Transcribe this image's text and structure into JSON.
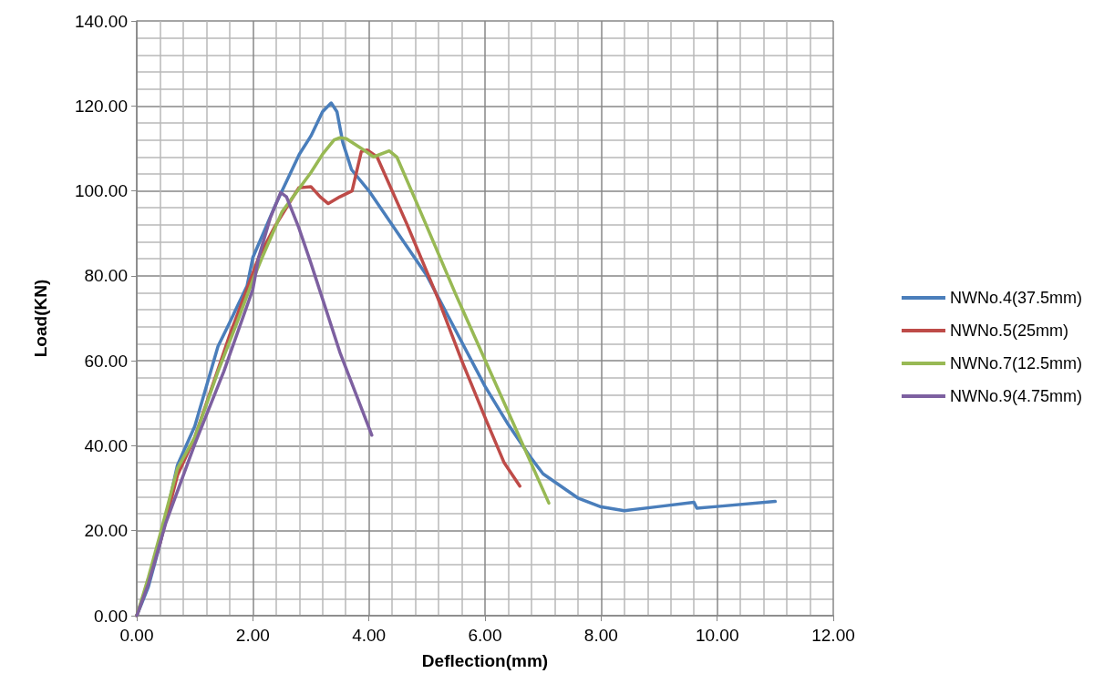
{
  "chart_data": {
    "type": "line",
    "xlabel": "Deflection(mm)",
    "ylabel": "Load(KN)",
    "xlim": [
      0,
      12
    ],
    "ylim": [
      0,
      140
    ],
    "xticks": [
      {
        "value": 0,
        "label": "0.00"
      },
      {
        "value": 2,
        "label": "2.00"
      },
      {
        "value": 4,
        "label": "4.00"
      },
      {
        "value": 6,
        "label": "6.00"
      },
      {
        "value": 8,
        "label": "8.00"
      },
      {
        "value": 10,
        "label": "10.00"
      },
      {
        "value": 12,
        "label": "12.00"
      }
    ],
    "yticks": [
      {
        "value": 0,
        "label": "0.00"
      },
      {
        "value": 20,
        "label": "20.00"
      },
      {
        "value": 40,
        "label": "40.00"
      },
      {
        "value": 60,
        "label": "60.00"
      },
      {
        "value": 80,
        "label": "80.00"
      },
      {
        "value": 100,
        "label": "100.00"
      },
      {
        "value": 120,
        "label": "120.00"
      },
      {
        "value": 140,
        "label": "140.00"
      }
    ],
    "grid": true,
    "legend": "right",
    "marker": "none",
    "line_style": "solid",
    "series": [
      {
        "name": "NWNo.4(37.5mm)",
        "color": "#4a7ebb",
        "x": [
          0,
          0.2,
          0.4,
          0.7,
          1.0,
          1.4,
          1.6,
          1.9,
          2.0,
          2.4,
          2.8,
          3.0,
          3.2,
          3.35,
          3.45,
          3.55,
          3.7,
          4.0,
          4.5,
          5.0,
          5.5,
          6.0,
          6.4,
          6.8,
          7.0,
          7.6,
          8.0,
          8.4,
          9.0,
          9.6,
          9.65,
          10.0,
          11.0
        ],
        "values": [
          0,
          6.8,
          16.8,
          35.4,
          44.6,
          63.4,
          69,
          77.6,
          84.3,
          97,
          108.6,
          112.9,
          118.6,
          120.7,
          118.6,
          111.4,
          105,
          100,
          90,
          80,
          67,
          54,
          45,
          37,
          33.4,
          27.7,
          25.6,
          24.7,
          25.7,
          26.7,
          25.3,
          25.7,
          26.9
        ]
      },
      {
        "name": "NWNo.5(25mm)",
        "color": "#be4b48",
        "x": [
          0,
          0.2,
          0.4,
          0.7,
          1.0,
          1.4,
          1.6,
          2.1,
          2.37,
          2.79,
          3.0,
          3.16,
          3.3,
          3.5,
          3.71,
          3.87,
          3.97,
          4.14,
          4.66,
          5.18,
          5.6,
          6.02,
          6.33,
          6.6
        ],
        "values": [
          0,
          8,
          17,
          33,
          42,
          58,
          66,
          84.3,
          91.4,
          100.7,
          101,
          98.6,
          97,
          98.6,
          100,
          109.3,
          109.6,
          108,
          92,
          75,
          60,
          46,
          36,
          30.5
        ]
      },
      {
        "name": "NWNo.7(12.5mm)",
        "color": "#98b954",
        "x": [
          0,
          0.2,
          0.4,
          0.7,
          1.0,
          1.4,
          1.7,
          2.0,
          2.16,
          2.5,
          3.0,
          3.2,
          3.4,
          3.5,
          3.61,
          3.87,
          4.08,
          4.35,
          4.48,
          4.87,
          5.5,
          6.02,
          6.54,
          7.1
        ],
        "values": [
          0,
          9,
          19,
          34.6,
          42,
          57.5,
          68,
          79,
          84.3,
          95,
          104.3,
          108.6,
          112,
          112.5,
          112.3,
          110,
          108,
          109.4,
          108,
          95.7,
          75.5,
          59.6,
          43.7,
          26.5
        ]
      },
      {
        "name": "NWNo.9(4.75mm)",
        "color": "#7d60a0",
        "x": [
          0,
          0.2,
          0.5,
          1.0,
          1.5,
          2.0,
          2.1,
          2.3,
          2.48,
          2.58,
          2.79,
          3.0,
          3.5,
          4.05
        ],
        "values": [
          0,
          7.5,
          21.8,
          40.4,
          57.5,
          76.8,
          84.3,
          93.6,
          99.6,
          98.6,
          91.4,
          83,
          62,
          42.5
        ]
      }
    ]
  }
}
